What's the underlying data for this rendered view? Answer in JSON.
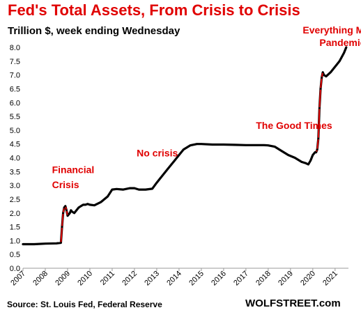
{
  "title": "Fed's Total Assets, From Crisis to Crisis",
  "subtitle": "Trillion $, week ending Wednesday",
  "source": "Source: St. Louis Fed, Federal Reserve",
  "brand": "WOLFSTREET.com",
  "chart_data": {
    "type": "line",
    "title": "Fed's Total Assets, From Crisis to Crisis",
    "subtitle": "Trillion $, week ending Wednesday",
    "xlabel": "",
    "ylabel": "",
    "xlim": [
      2007.0,
      2021.6
    ],
    "ylim": [
      0.0,
      8.0
    ],
    "y_ticks": [
      "0.0",
      "0.5",
      "1.0",
      "1.5",
      "2.0",
      "2.5",
      "3.0",
      "3.5",
      "4.0",
      "4.5",
      "5.0",
      "5.5",
      "6.0",
      "6.5",
      "7.0",
      "7.5",
      "8.0"
    ],
    "x_ticks": [
      "2007",
      "2008",
      "2009",
      "2010",
      "2011",
      "2012",
      "2013",
      "2014",
      "2015",
      "2016",
      "2017",
      "2018",
      "2019",
      "2020",
      "2021"
    ],
    "grid": false,
    "colors": {
      "line": "#000000",
      "crisis_segment": "#e00000",
      "annotation": "#e00000"
    },
    "series": [
      {
        "x": [
          2007.0,
          2007.5,
          2008.0,
          2008.5,
          2008.7,
          2008.75,
          2008.8,
          2008.85,
          2008.9,
          2008.95,
          2009.0,
          2009.1,
          2009.15,
          2009.2,
          2009.3,
          2009.4,
          2009.5,
          2009.6,
          2009.7,
          2009.8,
          2009.9,
          2010.0,
          2010.2,
          2010.5,
          2010.8,
          2011.0,
          2011.2,
          2011.5,
          2011.8,
          2012.0,
          2012.2,
          2012.5,
          2012.8,
          2013.0,
          2013.2,
          2013.5,
          2013.8,
          2014.0,
          2014.2,
          2014.5,
          2014.8,
          2015.0,
          2015.5,
          2016.0,
          2016.5,
          2017.0,
          2017.5,
          2017.8,
          2018.0,
          2018.3,
          2018.6,
          2018.9,
          2019.2,
          2019.5,
          2019.7,
          2019.8,
          2019.9,
          2020.0,
          2020.1,
          2020.15,
          2020.2,
          2020.25,
          2020.3,
          2020.35,
          2020.4,
          2020.45,
          2020.5,
          2020.6,
          2020.8,
          2021.0,
          2021.2,
          2021.4,
          2021.5
        ],
        "values": [
          0.87,
          0.87,
          0.89,
          0.9,
          0.92,
          1.5,
          2.0,
          2.2,
          2.25,
          2.1,
          1.9,
          2.0,
          2.1,
          2.05,
          2.0,
          2.1,
          2.2,
          2.25,
          2.3,
          2.3,
          2.33,
          2.3,
          2.28,
          2.4,
          2.6,
          2.85,
          2.87,
          2.85,
          2.9,
          2.9,
          2.85,
          2.85,
          2.88,
          3.1,
          3.3,
          3.6,
          3.9,
          4.1,
          4.3,
          4.45,
          4.5,
          4.5,
          4.48,
          4.48,
          4.47,
          4.46,
          4.46,
          4.46,
          4.45,
          4.4,
          4.25,
          4.1,
          4.0,
          3.85,
          3.8,
          3.76,
          3.9,
          4.1,
          4.2,
          4.2,
          4.3,
          4.7,
          5.8,
          6.5,
          6.9,
          7.1,
          7.0,
          6.95,
          7.1,
          7.3,
          7.5,
          7.8,
          8.0
        ]
      }
    ],
    "red_segments": [
      [
        2008.7,
        2009.0
      ],
      [
        2020.15,
        2020.45
      ]
    ],
    "annotations": [
      {
        "text": "Financial",
        "x": 2008.3,
        "y": 3.45
      },
      {
        "text": "Crisis",
        "x": 2008.3,
        "y": 2.9
      },
      {
        "text": "No crisis",
        "x": 2012.1,
        "y": 4.05
      },
      {
        "text": "The Good Times",
        "x": 2017.45,
        "y": 5.05
      },
      {
        "text": "Everything Mania",
        "x": 2019.55,
        "y": 8.5
      },
      {
        "text": "Pandemic",
        "x": 2020.3,
        "y": 8.05
      }
    ]
  }
}
